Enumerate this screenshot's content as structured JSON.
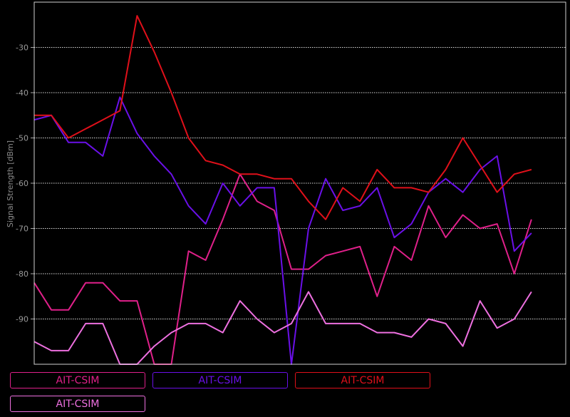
{
  "chart_data": {
    "type": "line",
    "title": "",
    "xlabel": "",
    "ylabel": "Signal Strength [dBm]",
    "ylim": [
      -100,
      -20
    ],
    "yticks": [
      -30,
      -40,
      -50,
      -60,
      -70,
      -80,
      -90
    ],
    "grid": "horizontal-dotted",
    "legend_position": "bottom",
    "x": [
      0,
      1,
      2,
      3,
      4,
      5,
      6,
      7,
      8,
      9,
      10,
      11,
      12,
      13,
      14,
      15,
      16,
      17,
      18,
      19,
      20,
      21,
      22,
      23,
      24,
      25,
      26,
      27,
      28,
      29,
      30,
      31
    ],
    "series": [
      {
        "name": "AIT-CSIM",
        "color": "#e0208a",
        "values": [
          -82,
          -88,
          -88,
          -82,
          -82,
          -86,
          -86,
          -100,
          -100,
          -75,
          -77,
          -68,
          -58,
          -64,
          -66,
          -79,
          -79,
          -76,
          -75,
          -74,
          -85,
          -74,
          -77,
          -65,
          -72,
          -67,
          -70,
          -69,
          -80,
          -68,
          null,
          null
        ]
      },
      {
        "name": "AIT-CSIM",
        "color": "#6a10e8",
        "values": [
          -46,
          -45,
          -51,
          -51,
          -54,
          -41,
          -49,
          -54,
          -58,
          -65,
          -69,
          -60,
          -65,
          -61,
          -61,
          -100,
          -70,
          -59,
          -66,
          -65,
          -61,
          -72,
          -69,
          -62,
          -59,
          -62,
          -57,
          -54,
          -75,
          -71,
          null,
          null
        ]
      },
      {
        "name": "AIT-CSIM",
        "color": "#e0101a",
        "values": [
          -45,
          -45,
          -50,
          -48,
          -46,
          -44,
          -23,
          -31,
          -40,
          -50,
          -55,
          -56,
          -58,
          -58,
          -59,
          -59,
          -64,
          -68,
          -61,
          -64,
          -57,
          -61,
          -61,
          -62,
          -57,
          -50,
          -56,
          -62,
          -58,
          -57,
          null,
          null
        ]
      },
      {
        "name": "AIT-CSIM",
        "color": "#ee70e0",
        "values": [
          -95,
          -97,
          -97,
          -91,
          -91,
          -100,
          -100,
          -96,
          -93,
          -91,
          -91,
          -93,
          -86,
          -90,
          -93,
          -91,
          -84,
          -91,
          -91,
          -91,
          -93,
          -93,
          -94,
          -90,
          -91,
          -96,
          -86,
          -92,
          -90,
          -84,
          null,
          null
        ]
      }
    ]
  }
}
